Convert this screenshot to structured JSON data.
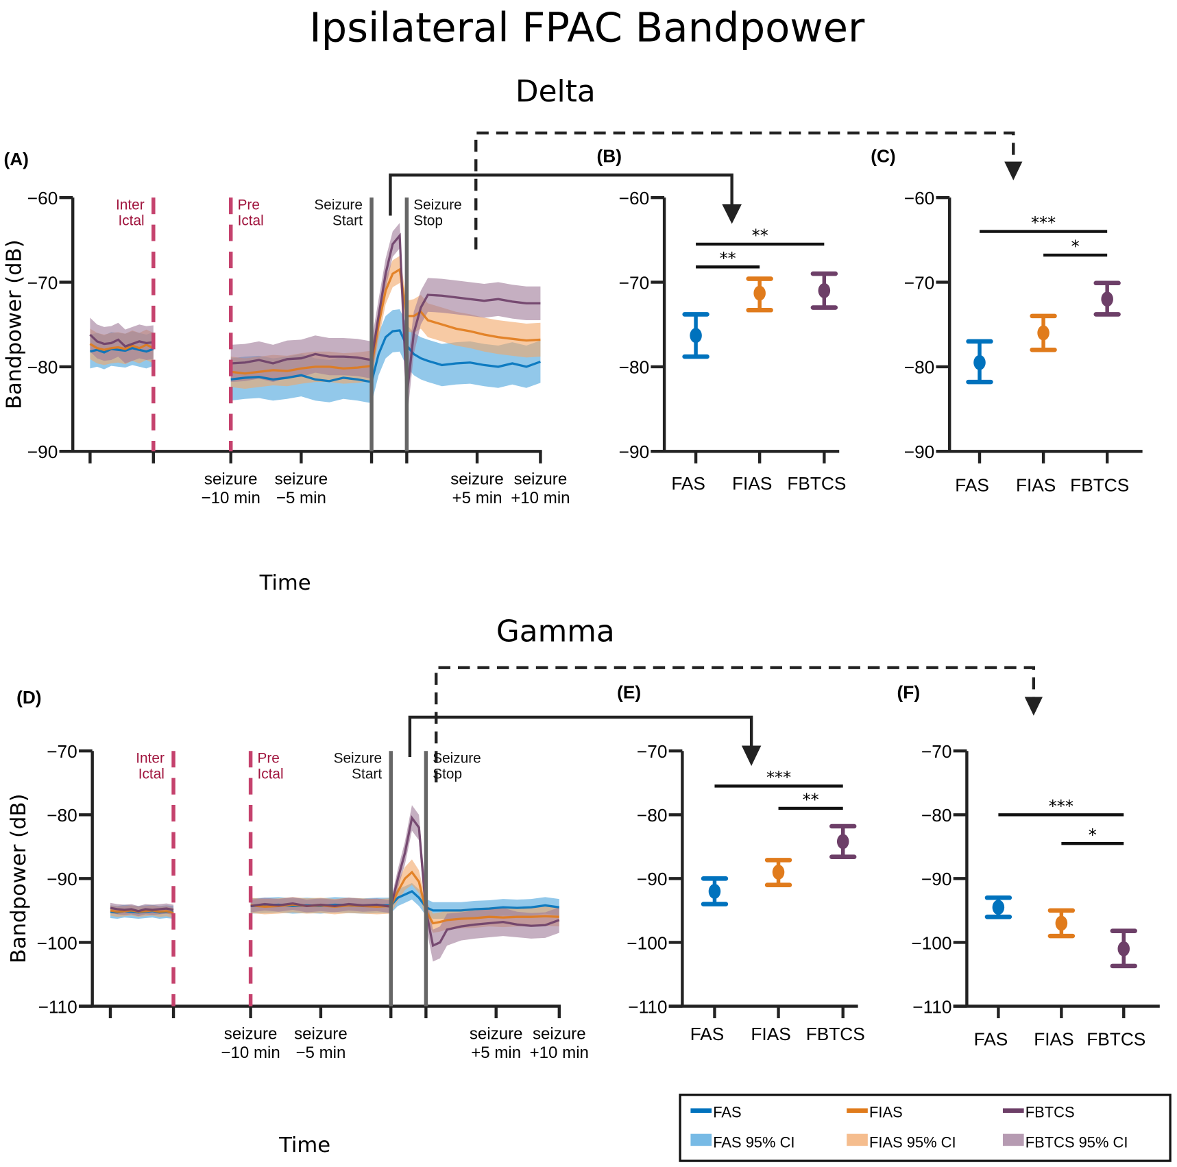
{
  "title": "Ipsilateral FPAC Bandpower",
  "colors": {
    "FAS": "#0072bd",
    "FIAS": "#e07b1c",
    "FBTCS": "#6d3f68",
    "FAS_CI": "#4aa3dc",
    "FIAS_CI": "#f2a768",
    "FBTCS_CI": "#9e7a98",
    "marker_dashed": "#c5426d",
    "marker_text": "#a0153e",
    "seizure_line": "#666666",
    "axis": "#222222"
  },
  "legend": {
    "items": [
      {
        "label": "FAS",
        "key": "FAS",
        "kind": "line"
      },
      {
        "label": "FIAS",
        "key": "FIAS",
        "kind": "line"
      },
      {
        "label": "FBTCS",
        "key": "FBTCS",
        "kind": "line"
      },
      {
        "label": "FAS 95% CI",
        "key": "FAS_CI",
        "kind": "patch"
      },
      {
        "label": "FIAS 95% CI",
        "key": "FIAS_CI",
        "kind": "patch"
      },
      {
        "label": "FBTCS 95% CI",
        "key": "FBTCS_CI",
        "kind": "patch"
      }
    ]
  },
  "chart_data": [
    {
      "id": "A",
      "band": "Delta",
      "panel_label": "(A)",
      "type": "line",
      "xlabel": "Time",
      "ylabel": "Bandpower (dB)",
      "ylim": [
        -90,
        -60
      ],
      "yticks": [
        -60,
        -70,
        -80,
        -90
      ],
      "xticks": [
        0,
        9,
        20,
        30,
        40,
        45,
        55,
        64
      ],
      "xtick_labels": [
        "",
        "",
        "seizure −10 min",
        "seizure −5 min",
        "",
        "",
        "seizure +5 min",
        "seizure +10 min"
      ],
      "markers": [
        {
          "x": 9,
          "style": "dashed",
          "lines": [
            "Inter",
            "Ictal"
          ],
          "align": "end"
        },
        {
          "x": 20,
          "style": "dashed",
          "lines": [
            "Pre",
            "Ictal"
          ],
          "align": "start"
        },
        {
          "x": 40,
          "style": "solid",
          "lines": [
            "Seizure",
            "Start"
          ],
          "align": "end"
        },
        {
          "x": 45,
          "style": "solid",
          "lines": [
            "Seizure",
            "Stop"
          ],
          "align": "start"
        }
      ],
      "segments": [
        {
          "x": [
            0,
            1,
            2,
            3,
            4,
            5,
            6,
            7,
            8,
            9
          ],
          "series": [
            {
              "name": "FAS",
              "mean": [
                -78.2,
                -78,
                -78.3,
                -77.9,
                -78,
                -78.1,
                -77.8,
                -78,
                -78.2,
                -77.9
              ],
              "ci": [
                2,
                2,
                2,
                2,
                2,
                2,
                2,
                2,
                2,
                2
              ]
            },
            {
              "name": "FIAS",
              "mean": [
                -77.3,
                -77.8,
                -78,
                -77.8,
                -77.7,
                -77.9,
                -77.5,
                -77.8,
                -77.4,
                -77.8
              ],
              "ci": [
                1.8,
                1.8,
                1.8,
                1.8,
                1.8,
                1.8,
                1.8,
                1.8,
                1.8,
                1.8
              ]
            },
            {
              "name": "FBTCS",
              "mean": [
                -76.2,
                -77,
                -77.3,
                -77.2,
                -76.8,
                -77.6,
                -77.3,
                -77,
                -77.2,
                -77.1
              ],
              "ci": [
                2,
                2,
                2,
                2,
                2,
                2,
                2,
                2,
                2,
                2
              ]
            }
          ]
        },
        {
          "x": [
            20,
            22,
            24,
            26,
            28,
            30,
            32,
            34,
            36,
            38,
            40,
            41,
            42,
            43,
            44,
            45,
            46,
            47,
            48,
            50,
            52,
            54,
            56,
            58,
            60,
            62,
            64
          ],
          "series": [
            {
              "name": "FAS",
              "mean": [
                -81.5,
                -81.3,
                -81.2,
                -81.5,
                -81.3,
                -81,
                -81.5,
                -81.7,
                -81.3,
                -81.5,
                -81.8,
                -78.5,
                -76.5,
                -75.8,
                -75.7,
                -77.5,
                -78.5,
                -79,
                -79.3,
                -79.8,
                -79.6,
                -79.5,
                -79.8,
                -80,
                -79.6,
                -80,
                -79.4
              ],
              "ci": [
                2.5,
                2.5,
                2.5,
                2.5,
                2.5,
                2.5,
                2.5,
                2.5,
                2.5,
                2.5,
                2.5,
                2.5,
                2.5,
                2.5,
                2.5,
                2.5,
                2.5,
                2.5,
                2.5,
                2.5,
                2.5,
                2.5,
                2.5,
                2.5,
                2.5,
                2.5,
                2.5
              ]
            },
            {
              "name": "FIAS",
              "mean": [
                -80.6,
                -80.8,
                -80.6,
                -80.4,
                -80.5,
                -80.2,
                -80,
                -80,
                -80.2,
                -80.1,
                -79.9,
                -75,
                -71,
                -69,
                -68.5,
                -74,
                -74,
                -73.5,
                -74.5,
                -75,
                -75.5,
                -75.8,
                -76.2,
                -76.5,
                -76.7,
                -76.9,
                -76.8
              ],
              "ci": [
                1.8,
                1.8,
                1.8,
                1.8,
                1.8,
                1.8,
                1.8,
                1.8,
                1.8,
                1.8,
                1.8,
                1.8,
                1.6,
                1.6,
                1.6,
                1.8,
                2,
                2,
                2,
                2,
                2,
                2,
                2,
                2,
                2,
                2,
                2
              ]
            },
            {
              "name": "FBTCS",
              "mean": [
                -79.6,
                -79.5,
                -79.2,
                -79.6,
                -79.1,
                -79,
                -78.5,
                -78.8,
                -78.8,
                -78.9,
                -79.2,
                -74,
                -69,
                -65.5,
                -64.5,
                -83.5,
                -76,
                -73,
                -71.5,
                -71.6,
                -71.8,
                -72,
                -72.2,
                -72,
                -72.3,
                -72.5,
                -72.5
              ],
              "ci": [
                2.2,
                2.2,
                2.2,
                2.2,
                2.2,
                2.2,
                2.2,
                2.2,
                2.2,
                2.2,
                2.2,
                2,
                1.8,
                1.5,
                1.5,
                3,
                2.5,
                2,
                2,
                2,
                2,
                2,
                2,
                2,
                2,
                2,
                2
              ]
            }
          ]
        }
      ]
    },
    {
      "id": "B",
      "band": "Delta",
      "panel_label": "(B)",
      "type": "errorbar",
      "ylim": [
        -90,
        -60
      ],
      "yticks": [
        -60,
        -70,
        -80,
        -90
      ],
      "categories": [
        "FAS",
        "FIAS",
        "FBTCS"
      ],
      "mean": [
        -76.3,
        -71.3,
        -71
      ],
      "lower": [
        -78.8,
        -73.3,
        -73
      ],
      "upper": [
        -73.8,
        -69.6,
        -69
      ],
      "significance": [
        {
          "from": 0,
          "to": 1,
          "y": -68.2,
          "label": "**"
        },
        {
          "from": 0,
          "to": 2,
          "y": -65.5,
          "label": "**"
        }
      ]
    },
    {
      "id": "C",
      "band": "Delta",
      "panel_label": "(C)",
      "type": "errorbar",
      "ylim": [
        -90,
        -60
      ],
      "yticks": [
        -60,
        -70,
        -80,
        -90
      ],
      "categories": [
        "FAS",
        "FIAS",
        "FBTCS"
      ],
      "mean": [
        -79.5,
        -76,
        -72
      ],
      "lower": [
        -81.8,
        -78,
        -73.8
      ],
      "upper": [
        -77,
        -74,
        -70.1
      ],
      "significance": [
        {
          "from": 0,
          "to": 2,
          "y": -64,
          "label": "***"
        },
        {
          "from": 1,
          "to": 2,
          "y": -66.8,
          "label": "*"
        }
      ]
    },
    {
      "id": "D",
      "band": "Gamma",
      "panel_label": "(D)",
      "type": "line",
      "xlabel": "Time",
      "ylabel": "Bandpower (dB)",
      "ylim": [
        -110,
        -70
      ],
      "yticks": [
        -70,
        -80,
        -90,
        -100,
        -110
      ],
      "xticks": [
        0,
        9,
        20,
        30,
        40,
        45,
        55,
        64
      ],
      "xtick_labels": [
        "",
        "",
        "seizure −10 min",
        "seizure −5 min",
        "",
        "",
        "seizure +5 min",
        "seizure +10 min"
      ],
      "markers": [
        {
          "x": 9,
          "style": "dashed",
          "lines": [
            "Inter",
            "Ictal"
          ],
          "align": "end"
        },
        {
          "x": 20,
          "style": "dashed",
          "lines": [
            "Pre",
            "Ictal"
          ],
          "align": "start"
        },
        {
          "x": 40,
          "style": "solid",
          "lines": [
            "Seizure",
            "Start"
          ],
          "align": "end"
        },
        {
          "x": 45,
          "style": "solid",
          "lines": [
            "Seizure",
            "Stop"
          ],
          "align": "start"
        }
      ],
      "segments": [
        {
          "x": [
            0,
            1,
            2,
            3,
            4,
            5,
            6,
            7,
            8,
            9
          ],
          "series": [
            {
              "name": "FAS",
              "mean": [
                -95.2,
                -95.3,
                -95.1,
                -95.2,
                -95.3,
                -95.2,
                -95.1,
                -95.3,
                -95.2,
                -95.3
              ],
              "ci": [
                1,
                1,
                1,
                1,
                1,
                1,
                1,
                1,
                1,
                1
              ]
            },
            {
              "name": "FIAS",
              "mean": [
                -95,
                -95.2,
                -95.1,
                -95,
                -95.2,
                -95.1,
                -95,
                -95.2,
                -95.1,
                -95.4
              ],
              "ci": [
                0.8,
                0.8,
                0.8,
                0.8,
                0.8,
                0.8,
                0.8,
                0.8,
                0.8,
                0.8
              ]
            },
            {
              "name": "FBTCS",
              "mean": [
                -94.6,
                -94.8,
                -94.9,
                -94.8,
                -95.1,
                -94.8,
                -94.9,
                -94.8,
                -94.7,
                -94.9
              ],
              "ci": [
                0.8,
                0.8,
                0.8,
                0.8,
                0.8,
                0.8,
                0.8,
                0.8,
                0.8,
                0.8
              ]
            }
          ]
        },
        {
          "x": [
            20,
            22,
            24,
            26,
            28,
            30,
            32,
            34,
            36,
            38,
            40,
            41,
            42,
            43,
            44,
            45,
            46,
            47,
            48,
            50,
            52,
            54,
            56,
            58,
            60,
            62,
            64
          ],
          "series": [
            {
              "name": "FAS",
              "mean": [
                -94.3,
                -94.2,
                -94.1,
                -94.3,
                -94.2,
                -94.3,
                -94.1,
                -94.2,
                -94.3,
                -94.2,
                -94.2,
                -93,
                -92.5,
                -92,
                -93,
                -94.5,
                -95,
                -95,
                -95,
                -95,
                -94.8,
                -94.7,
                -94.5,
                -94.6,
                -94.5,
                -94.2,
                -94.5
              ],
              "ci": [
                1.2,
                1.2,
                1.2,
                1.2,
                1.2,
                1.2,
                1.2,
                1.2,
                1.2,
                1.2,
                1.2,
                1.3,
                1.3,
                1.3,
                1.3,
                1.3,
                1.3,
                1.3,
                1.3,
                1.3,
                1.3,
                1.3,
                1.3,
                1.3,
                1.3,
                1.3,
                1.3
              ]
            },
            {
              "name": "FIAS",
              "mean": [
                -94.2,
                -94.4,
                -94.3,
                -94.1,
                -94.3,
                -94.2,
                -94.4,
                -94.2,
                -94.3,
                -94.4,
                -94.3,
                -92,
                -90,
                -89,
                -90.5,
                -95,
                -97,
                -96.8,
                -96.5,
                -96.3,
                -96.2,
                -96,
                -96.1,
                -96,
                -96,
                -95.9,
                -96
              ],
              "ci": [
                1.2,
                1.2,
                1.2,
                1.2,
                1.2,
                1.2,
                1.2,
                1.2,
                1.2,
                1.2,
                1.2,
                1.5,
                1.8,
                2,
                1.8,
                1.5,
                1.5,
                1.5,
                1.5,
                1.5,
                1.5,
                1.5,
                1.5,
                1.5,
                1.5,
                1.5,
                1.5
              ]
            },
            {
              "name": "FBTCS",
              "mean": [
                -94.3,
                -94,
                -94.2,
                -93.9,
                -94.3,
                -94.1,
                -94.3,
                -94,
                -94.2,
                -94.1,
                -94.4,
                -90,
                -86,
                -80.5,
                -82,
                -95,
                -100.5,
                -100,
                -98,
                -97.5,
                -97.2,
                -97,
                -96.8,
                -97.2,
                -97.4,
                -97.3,
                -96.5
              ],
              "ci": [
                1,
                1,
                1,
                1,
                1,
                1,
                1,
                1,
                1,
                1,
                1,
                1.5,
                1.8,
                2,
                2,
                2.5,
                2.5,
                2.5,
                2.5,
                2.2,
                2.2,
                2.2,
                2.2,
                2,
                2,
                2,
                2
              ]
            }
          ]
        }
      ]
    },
    {
      "id": "E",
      "band": "Gamma",
      "panel_label": "(E)",
      "type": "errorbar",
      "ylim": [
        -110,
        -70
      ],
      "yticks": [
        -70,
        -80,
        -90,
        -100,
        -110
      ],
      "categories": [
        "FAS",
        "FIAS",
        "FBTCS"
      ],
      "mean": [
        -92,
        -89,
        -84.2
      ],
      "lower": [
        -94,
        -91,
        -86.6
      ],
      "upper": [
        -90,
        -87.1,
        -81.8
      ],
      "significance": [
        {
          "from": 0,
          "to": 2,
          "y": -75.5,
          "label": "***"
        },
        {
          "from": 1,
          "to": 2,
          "y": -79,
          "label": "**"
        }
      ]
    },
    {
      "id": "F",
      "band": "Gamma",
      "panel_label": "(F)",
      "type": "errorbar",
      "ylim": [
        -110,
        -70
      ],
      "yticks": [
        -70,
        -80,
        -90,
        -100,
        -110
      ],
      "categories": [
        "FAS",
        "FIAS",
        "FBTCS"
      ],
      "mean": [
        -94.5,
        -97,
        -101
      ],
      "lower": [
        -96,
        -99,
        -103.7
      ],
      "upper": [
        -93,
        -95,
        -98.2
      ],
      "significance": [
        {
          "from": 0,
          "to": 2,
          "y": -80,
          "label": "***"
        },
        {
          "from": 1,
          "to": 2,
          "y": -84.5,
          "label": "*"
        }
      ]
    }
  ],
  "sections": {
    "delta": "Delta",
    "gamma": "Gamma"
  }
}
